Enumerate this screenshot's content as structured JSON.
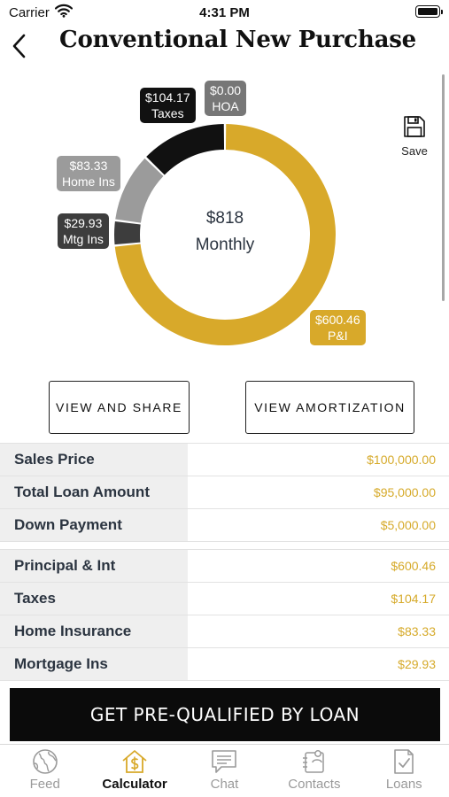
{
  "status_bar": {
    "carrier": "Carrier",
    "time": "4:31 PM"
  },
  "header": {
    "title": "Conventional New Purchase"
  },
  "save": {
    "label": "Save",
    "icon": "floppy-disk-icon"
  },
  "chart_data": {
    "type": "pie",
    "center_amount": "$818",
    "center_caption": "Monthly",
    "series": [
      {
        "name": "P&I",
        "label": "$600.46",
        "value": 600.46,
        "color": "#d8a92a"
      },
      {
        "name": "Mtg Ins",
        "label": "$29.93",
        "value": 29.93,
        "color": "#3d3d3d"
      },
      {
        "name": "Home Ins",
        "label": "$83.33",
        "value": 83.33,
        "color": "#9b9b9b"
      },
      {
        "name": "Taxes",
        "label": "$104.17",
        "value": 104.17,
        "color": "#111111"
      },
      {
        "name": "HOA",
        "label": "$0.00",
        "value": 0.0,
        "color": "#777777"
      }
    ]
  },
  "actions": {
    "view_share": "VIEW AND SHARE",
    "view_amortization": "VIEW AMORTIZATION"
  },
  "summary_loan": [
    {
      "label": "Sales Price",
      "value": "$100,000.00"
    },
    {
      "label": "Total Loan Amount",
      "value": "$95,000.00"
    },
    {
      "label": "Down Payment",
      "value": "$5,000.00"
    }
  ],
  "summary_payment": [
    {
      "label": "Principal & Int",
      "value": "$600.46"
    },
    {
      "label": "Taxes",
      "value": "$104.17"
    },
    {
      "label": "Home Insurance",
      "value": "$83.33"
    },
    {
      "label": "Mortgage Ins",
      "value": "$29.93"
    }
  ],
  "cta": {
    "label": "GET PRE-QUALIFIED BY LOAN"
  },
  "tabs": [
    {
      "label": "Feed",
      "icon": "globe-icon",
      "active": false
    },
    {
      "label": "Calculator",
      "icon": "house-dollar-icon",
      "active": true
    },
    {
      "label": "Chat",
      "icon": "chat-bubble-icon",
      "active": false
    },
    {
      "label": "Contacts",
      "icon": "contacts-icon",
      "active": false
    },
    {
      "label": "Loans",
      "icon": "document-check-icon",
      "active": false
    }
  ],
  "colors": {
    "accent": "#d8a92a",
    "dark": "#0b0b0b",
    "label_bg": "#efefef",
    "value_text": "#d6aa2a"
  }
}
